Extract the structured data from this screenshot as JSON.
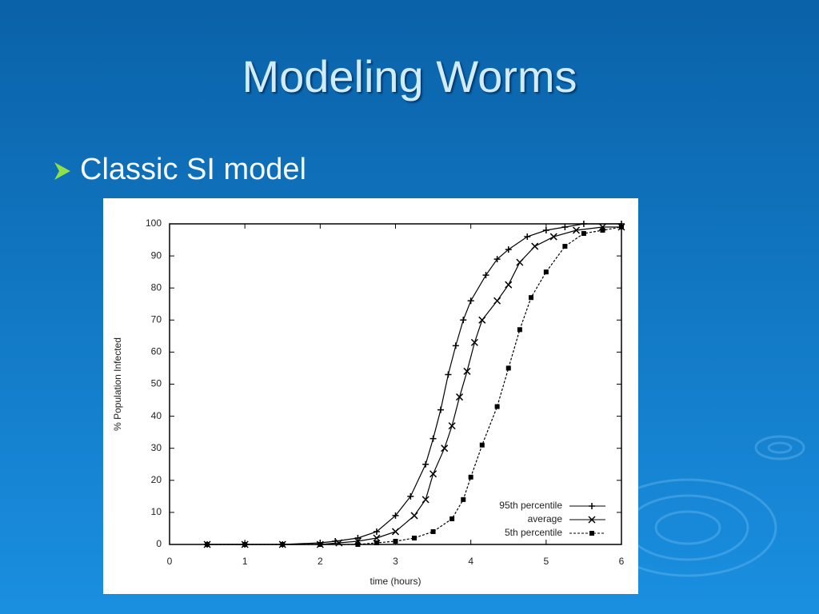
{
  "slide": {
    "title": "Modeling Worms",
    "bullet": "Classic SI model"
  },
  "chart_data": {
    "type": "line",
    "x_label": "time (hours)",
    "y_label": "% Population Infected",
    "xlim": [
      0,
      6
    ],
    "xticks": [
      0,
      1,
      2,
      3,
      4,
      5,
      6
    ],
    "ylim": [
      0,
      100
    ],
    "yticks": [
      0,
      10,
      20,
      30,
      40,
      50,
      60,
      70,
      80,
      90,
      100
    ],
    "legend": "lower right",
    "series": [
      {
        "name": "95th percentile",
        "color": "#000000",
        "marker": "plus",
        "dash": "solid",
        "x": [
          0.5,
          1,
          1.5,
          2,
          2.2,
          2.5,
          2.75,
          3,
          3.2,
          3.4,
          3.5,
          3.6,
          3.7,
          3.8,
          3.9,
          4,
          4.2,
          4.35,
          4.5,
          4.75,
          5,
          5.25,
          5.5,
          6
        ],
        "values": [
          0,
          0,
          0,
          0.5,
          1,
          2,
          4,
          9,
          15,
          25,
          33,
          42,
          53,
          62,
          70,
          76,
          84,
          89,
          92,
          96,
          98,
          99,
          100,
          100
        ]
      },
      {
        "name": "average",
        "color": "#000000",
        "marker": "cross",
        "dash": "solid",
        "x": [
          0.5,
          1,
          1.5,
          2,
          2.25,
          2.5,
          2.75,
          3,
          3.25,
          3.4,
          3.5,
          3.65,
          3.75,
          3.85,
          3.95,
          4.05,
          4.15,
          4.35,
          4.5,
          4.65,
          4.85,
          5.1,
          5.4,
          5.75,
          6
        ],
        "values": [
          0,
          0,
          0,
          0,
          0.5,
          1,
          2,
          4,
          9,
          14,
          22,
          30,
          37,
          46,
          54,
          63,
          70,
          76,
          81,
          88,
          93,
          96,
          98,
          99,
          99
        ]
      },
      {
        "name": "5th percentile",
        "color": "#000000",
        "marker": "square",
        "dash": "dashed",
        "x": [
          0.5,
          1,
          1.5,
          2,
          2.5,
          2.75,
          3,
          3.25,
          3.5,
          3.75,
          3.9,
          4,
          4.15,
          4.35,
          4.5,
          4.65,
          4.8,
          5,
          5.25,
          5.5,
          5.75,
          6
        ],
        "values": [
          0,
          0,
          0,
          0,
          0,
          0.5,
          1,
          2,
          4,
          8,
          14,
          21,
          31,
          43,
          55,
          67,
          77,
          85,
          93,
          97,
          98,
          99
        ]
      }
    ]
  }
}
